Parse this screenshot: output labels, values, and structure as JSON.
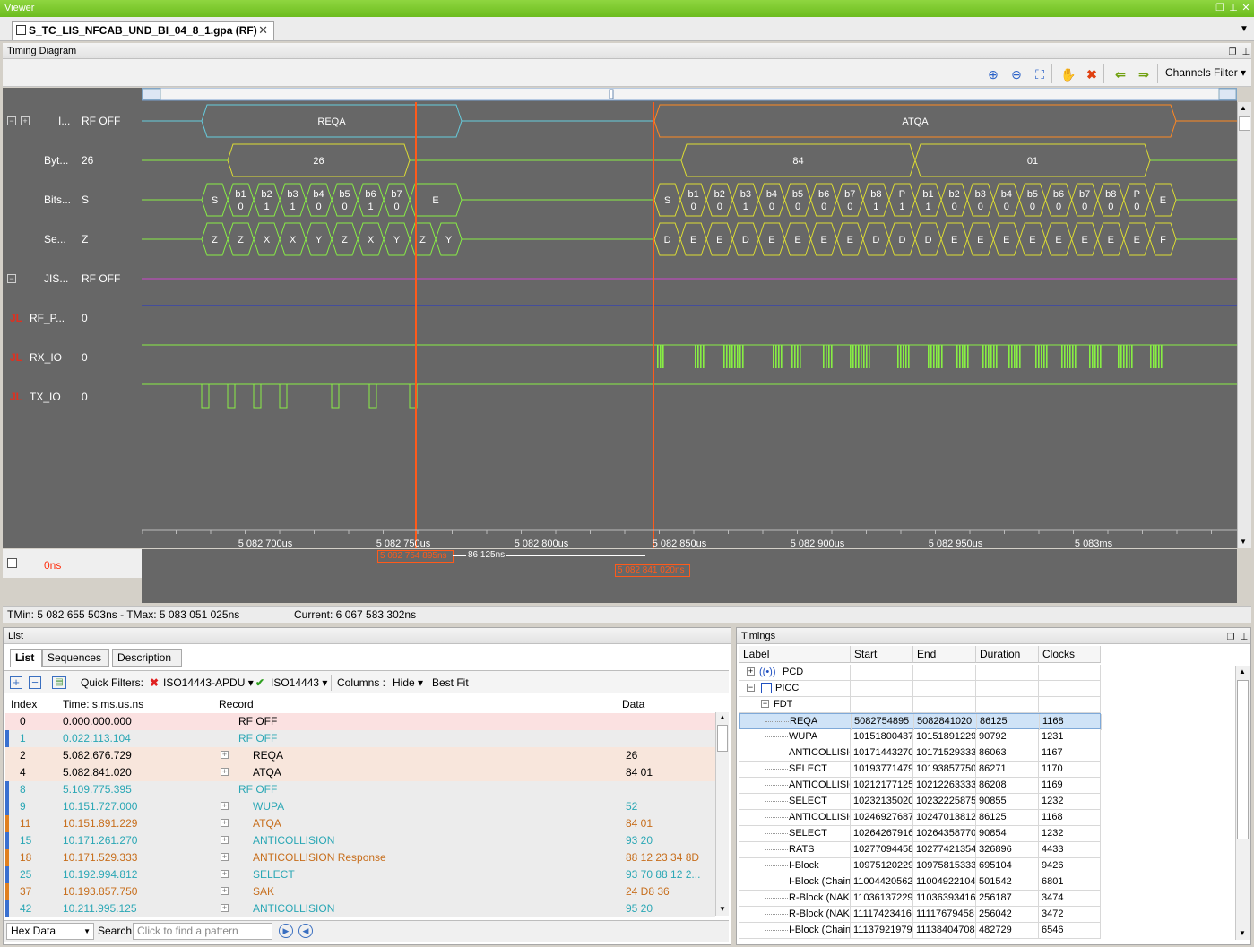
{
  "window": {
    "title": "Viewer"
  },
  "doc_tab": {
    "label": "S_TC_LIS_NFCAB_UND_BI_04_8_1.gpa (RF)"
  },
  "timing": {
    "title": "Timing Diagram",
    "channels_filter": "Channels Filter",
    "cursor_label": "0ns",
    "signals": [
      {
        "name": "I...",
        "value": "RF OFF"
      },
      {
        "name": "Byt...",
        "value": "26"
      },
      {
        "name": "Bits...",
        "value": "S"
      },
      {
        "name": "Se...",
        "value": "Z"
      },
      {
        "name": "JIS...",
        "value": "RF OFF"
      },
      {
        "name": "RF_P...",
        "value": "0"
      },
      {
        "name": "RX_IO",
        "value": "0"
      },
      {
        "name": "TX_IO",
        "value": "0"
      }
    ],
    "frames": {
      "reqa": "REQA",
      "atqa": "ATQA"
    },
    "bytes": {
      "req": "26",
      "atq1": "84",
      "atq2": "01"
    },
    "bits_req": [
      [
        "S",
        ""
      ],
      [
        "b1",
        "0"
      ],
      [
        "b2",
        "1"
      ],
      [
        "b3",
        "1"
      ],
      [
        "b4",
        "0"
      ],
      [
        "b5",
        "0"
      ],
      [
        "b6",
        "1"
      ],
      [
        "b7",
        "0"
      ],
      [
        "E",
        ""
      ]
    ],
    "bits_atq": [
      [
        "S",
        ""
      ],
      [
        "b1",
        "0"
      ],
      [
        "b2",
        "0"
      ],
      [
        "b3",
        "1"
      ],
      [
        "b4",
        "0"
      ],
      [
        "b5",
        "0"
      ],
      [
        "b6",
        "0"
      ],
      [
        "b7",
        "0"
      ],
      [
        "b8",
        "1"
      ],
      [
        "P",
        "1"
      ],
      [
        "b1",
        "1"
      ],
      [
        "b2",
        "0"
      ],
      [
        "b3",
        "0"
      ],
      [
        "b4",
        "0"
      ],
      [
        "b5",
        "0"
      ],
      [
        "b6",
        "0"
      ],
      [
        "b7",
        "0"
      ],
      [
        "b8",
        "0"
      ],
      [
        "P",
        "0"
      ],
      [
        "E",
        ""
      ]
    ],
    "seq_req": [
      "Z",
      "Z",
      "X",
      "X",
      "Y",
      "Z",
      "X",
      "Y",
      "Z",
      "Y"
    ],
    "seq_atq": [
      "D",
      "E",
      "E",
      "D",
      "E",
      "E",
      "E",
      "E",
      "D",
      "D",
      "D",
      "E",
      "E",
      "E",
      "E",
      "E",
      "E",
      "E",
      "E",
      "F"
    ],
    "axis_ticks": [
      "5 082 700us",
      "5 082 750us",
      "5 082 800us",
      "5 082 850us",
      "5 082 900us",
      "5 082 950us",
      "5 083ms"
    ],
    "marker1": "5 082 754 895ns",
    "marker2": "5 082 841 020ns",
    "delta": "86 125ns",
    "status_range": "TMin: 5 082 655 503ns - TMax: 5 083 051 025ns",
    "status_current": "Current: 6 067 583 302ns"
  },
  "list": {
    "title": "List",
    "tabs": [
      "List",
      "Sequences",
      "Description"
    ],
    "quick_filters_label": "Quick Filters:",
    "filter1": "ISO14443-APDU",
    "filter2": "ISO14443",
    "columns_label": "Columns :",
    "hide_label": "Hide",
    "best_fit": "Best Fit",
    "headers": [
      "Index",
      "Time: s.ms.us.ns",
      "Record",
      "Data"
    ],
    "rows": [
      {
        "index": "0",
        "time": "0.000.000.000",
        "record": "RF OFF",
        "data": ""
      },
      {
        "index": "1",
        "time": "0.022.113.104",
        "record": "RF OFF",
        "data": ""
      },
      {
        "index": "2",
        "time": "5.082.676.729",
        "record": "REQA",
        "data": "26"
      },
      {
        "index": "4",
        "time": "5.082.841.020",
        "record": "ATQA",
        "data": "84 01"
      },
      {
        "index": "8",
        "time": "5.109.775.395",
        "record": "RF OFF",
        "data": ""
      },
      {
        "index": "9",
        "time": "10.151.727.000",
        "record": "WUPA",
        "data": "52"
      },
      {
        "index": "11",
        "time": "10.151.891.229",
        "record": "ATQA",
        "data": "84 01"
      },
      {
        "index": "15",
        "time": "10.171.261.270",
        "record": "ANTICOLLISION",
        "data": "93 20"
      },
      {
        "index": "18",
        "time": "10.171.529.333",
        "record": "ANTICOLLISION Response",
        "data": "88 12 23 34 8D"
      },
      {
        "index": "25",
        "time": "10.192.994.812",
        "record": "SELECT",
        "data": "93 70 88 12 2..."
      },
      {
        "index": "37",
        "time": "10.193.857.750",
        "record": "SAK",
        "data": "24 D8 36"
      },
      {
        "index": "42",
        "time": "10.211.995.125",
        "record": "ANTICOLLISION",
        "data": "95 20"
      }
    ],
    "bottom_combo": "Hex Data",
    "search_label": "Search",
    "search_placeholder": "Click to find a pattern"
  },
  "timings": {
    "title": "Timings",
    "headers": [
      "Label",
      "Start",
      "End",
      "Duration",
      "Clocks"
    ],
    "groups": [
      "PCD",
      "PICC",
      "FDT"
    ],
    "rows": [
      {
        "label": "REQA",
        "start": "5082754895",
        "end": "5082841020",
        "duration": "86125",
        "clocks": "1168"
      },
      {
        "label": "WUPA",
        "start": "10151800437",
        "end": "10151891229",
        "duration": "90792",
        "clocks": "1231"
      },
      {
        "label": "ANTICOLLISIO",
        "start": "10171443270",
        "end": "10171529333",
        "duration": "86063",
        "clocks": "1167"
      },
      {
        "label": "SELECT",
        "start": "10193771479",
        "end": "10193857750",
        "duration": "86271",
        "clocks": "1170"
      },
      {
        "label": "ANTICOLLISIO",
        "start": "10212177125",
        "end": "10212263333",
        "duration": "86208",
        "clocks": "1169"
      },
      {
        "label": "SELECT",
        "start": "10232135020",
        "end": "10232225875",
        "duration": "90855",
        "clocks": "1232"
      },
      {
        "label": "ANTICOLLISIO",
        "start": "10246927687",
        "end": "10247013812",
        "duration": "86125",
        "clocks": "1168"
      },
      {
        "label": "SELECT",
        "start": "10264267916",
        "end": "10264358770",
        "duration": "90854",
        "clocks": "1232"
      },
      {
        "label": "RATS",
        "start": "10277094458",
        "end": "10277421354",
        "duration": "326896",
        "clocks": "4433"
      },
      {
        "label": "I-Block",
        "start": "10975120229",
        "end": "10975815333",
        "duration": "695104",
        "clocks": "9426"
      },
      {
        "label": "I-Block (Chaine",
        "start": "11004420562",
        "end": "11004922104",
        "duration": "501542",
        "clocks": "6801"
      },
      {
        "label": "R-Block (NAK)",
        "start": "11036137229",
        "end": "11036393416",
        "duration": "256187",
        "clocks": "3474"
      },
      {
        "label": "R-Block (NAK)",
        "start": "11117423416",
        "end": "11117679458",
        "duration": "256042",
        "clocks": "3472"
      },
      {
        "label": "I-Block (Chaine",
        "start": "11137921979",
        "end": "11138404708",
        "duration": "482729",
        "clocks": "6546"
      }
    ]
  },
  "colors": {
    "bg": "#676767",
    "reqa": "#66ccdd",
    "atqa": "#ff8822",
    "bytes": "#dddd33",
    "bits": "#88ee44",
    "marker": "#ff5a1a",
    "cyan_text": "#2aa7b5",
    "orange_text": "#c76e1c"
  }
}
